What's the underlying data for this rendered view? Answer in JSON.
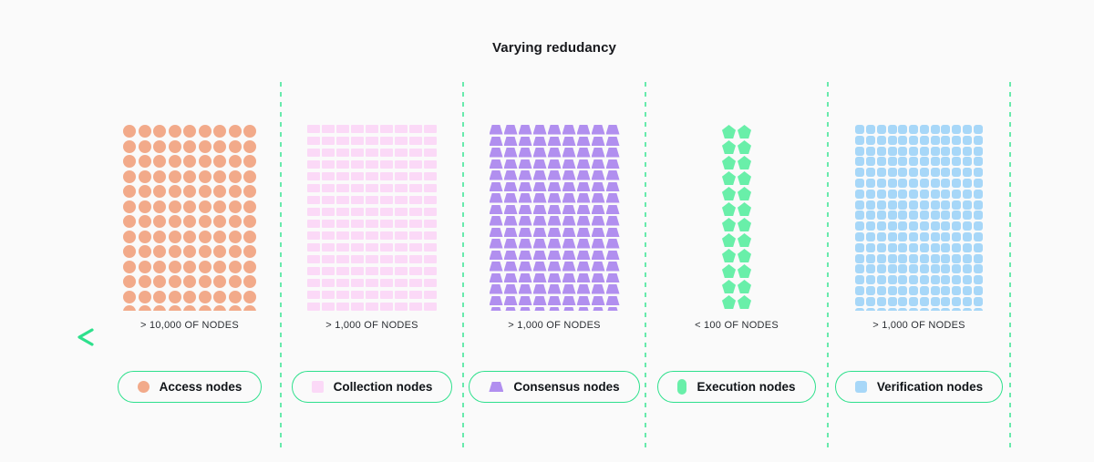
{
  "title": "Varying redudancy",
  "colors": {
    "background": "#FAFAFA",
    "divider_dash_green": "#68EAAC",
    "pill_border_green": "#2EE08C",
    "arrow_gradient_start": "#2EE08C",
    "arrow_gradient_end": "#0E8A60",
    "label_text": "#2b2e33"
  },
  "sections": [
    {
      "id": "access",
      "shape": "circle",
      "legend_icon": "circle",
      "cols": 9,
      "rows": 13,
      "color": "#F2AA8A",
      "count_label": "> 10,000 OF NODES",
      "legend_label": "Access nodes"
    },
    {
      "id": "collection",
      "shape": "rect",
      "legend_icon": "square",
      "cols": 9,
      "rows": 16,
      "color": "#FBD9F7",
      "count_label": "> 1,000 OF NODES",
      "legend_label": "Collection nodes"
    },
    {
      "id": "consensus",
      "shape": "trapezoid",
      "legend_icon": "trapezoid",
      "cols": 9,
      "rows": 17,
      "color": "#B18FEF",
      "count_label": "> 1,000 OF NODES",
      "legend_label": "Consensus nodes"
    },
    {
      "id": "execution",
      "shape": "pentagon",
      "legend_icon": "capsule",
      "cols": 2,
      "rows": 13,
      "color": "#69EFA9",
      "count_label": "< 100 OF NODES",
      "legend_label": "Execution nodes"
    },
    {
      "id": "verification",
      "shape": "rounded-square",
      "legend_icon": "rounded-square",
      "cols": 12,
      "rows": 18,
      "color": "#A7D7F8",
      "count_label": "> 1,000 OF NODES",
      "legend_label": "Verification nodes"
    }
  ]
}
